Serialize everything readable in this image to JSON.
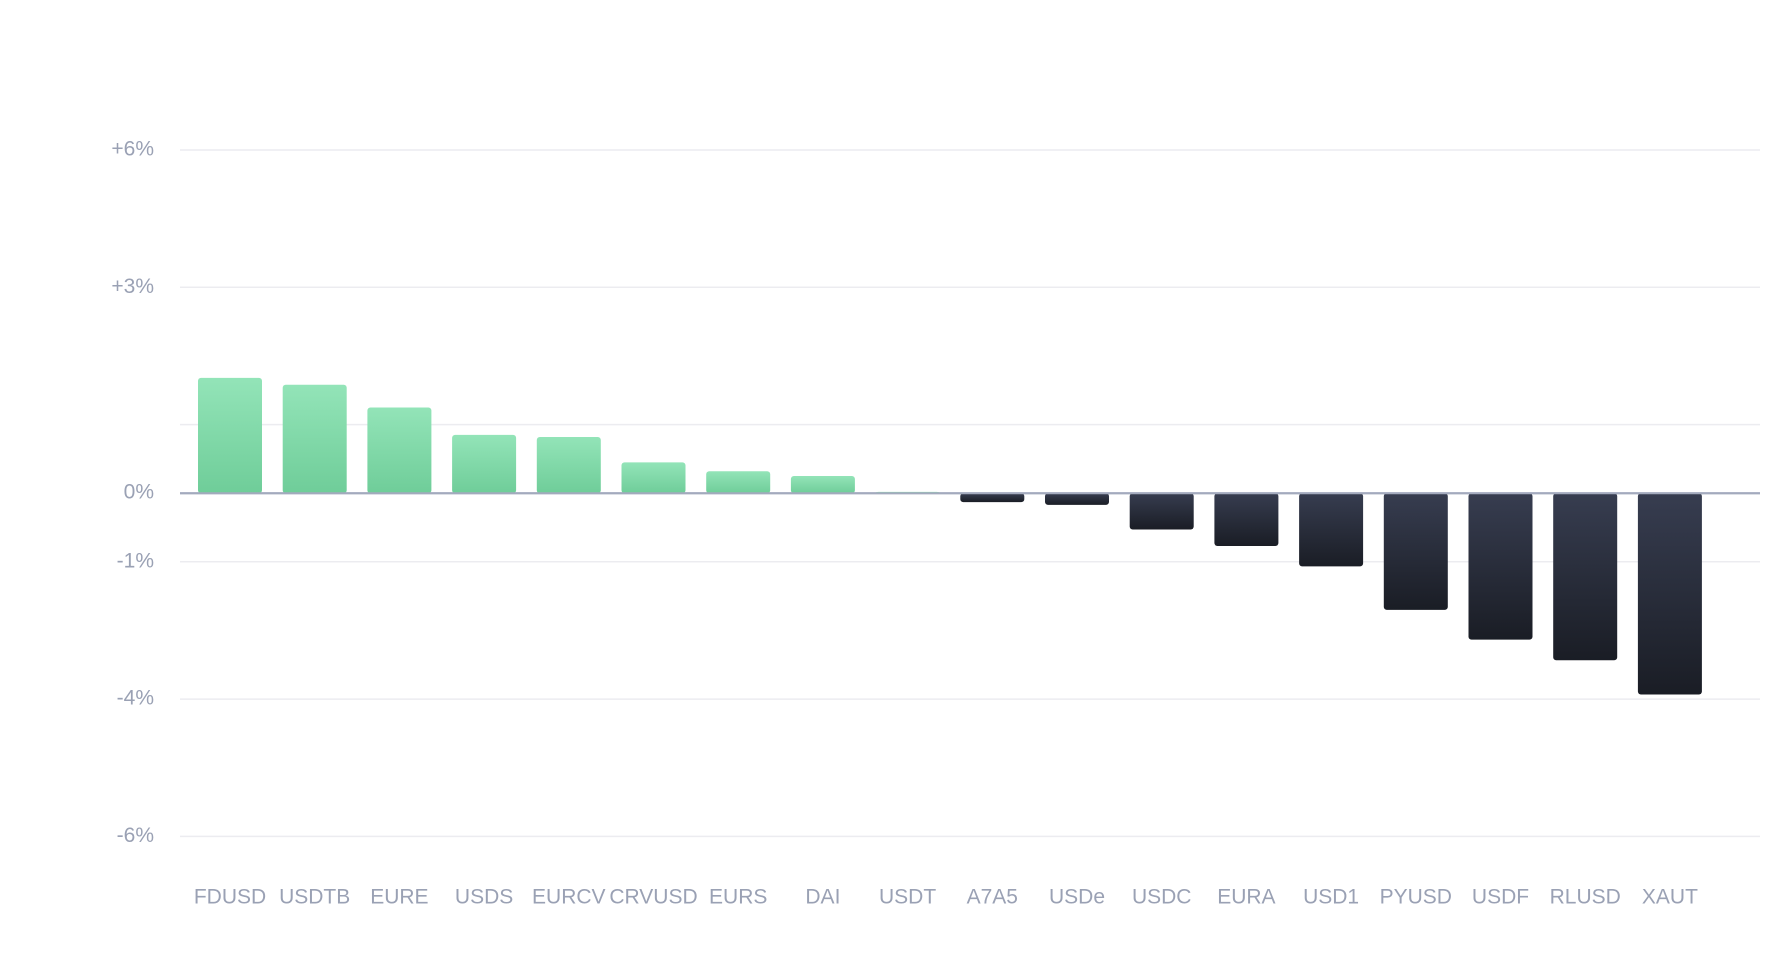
{
  "chart_data": {
    "type": "bar",
    "categories": [
      "FDUSD",
      "USDTB",
      "EURE",
      "USDS",
      "EURCV",
      "CRVUSD",
      "EURS",
      "DAI",
      "USDT",
      "A7A5",
      "USDe",
      "USDC",
      "EURA",
      "USD1",
      "PYUSD",
      "USDF",
      "RLUSD",
      "XAUT"
    ],
    "values": [
      1.68,
      1.58,
      1.25,
      0.85,
      0.82,
      0.45,
      0.32,
      0.25,
      0.02,
      -0.13,
      -0.17,
      -0.53,
      -0.77,
      -1.1,
      -2.05,
      -2.7,
      -3.15,
      -3.9
    ],
    "positive_colors": [
      "#93e4b8",
      "#6fcd99"
    ],
    "negative_colors": [
      "#373d50",
      "#1a1d25"
    ],
    "ylim": [
      -6,
      6
    ],
    "yticks": [
      {
        "value": 6,
        "label": "+6%"
      },
      {
        "value": 3,
        "label": "+3%"
      },
      1,
      {
        "value": 0,
        "label": "0%"
      },
      {
        "value": -1,
        "label": "-1%"
      },
      {
        "value": -4,
        "label": "-4%"
      },
      {
        "value": -6,
        "label": "-6%"
      }
    ],
    "grid": true
  }
}
